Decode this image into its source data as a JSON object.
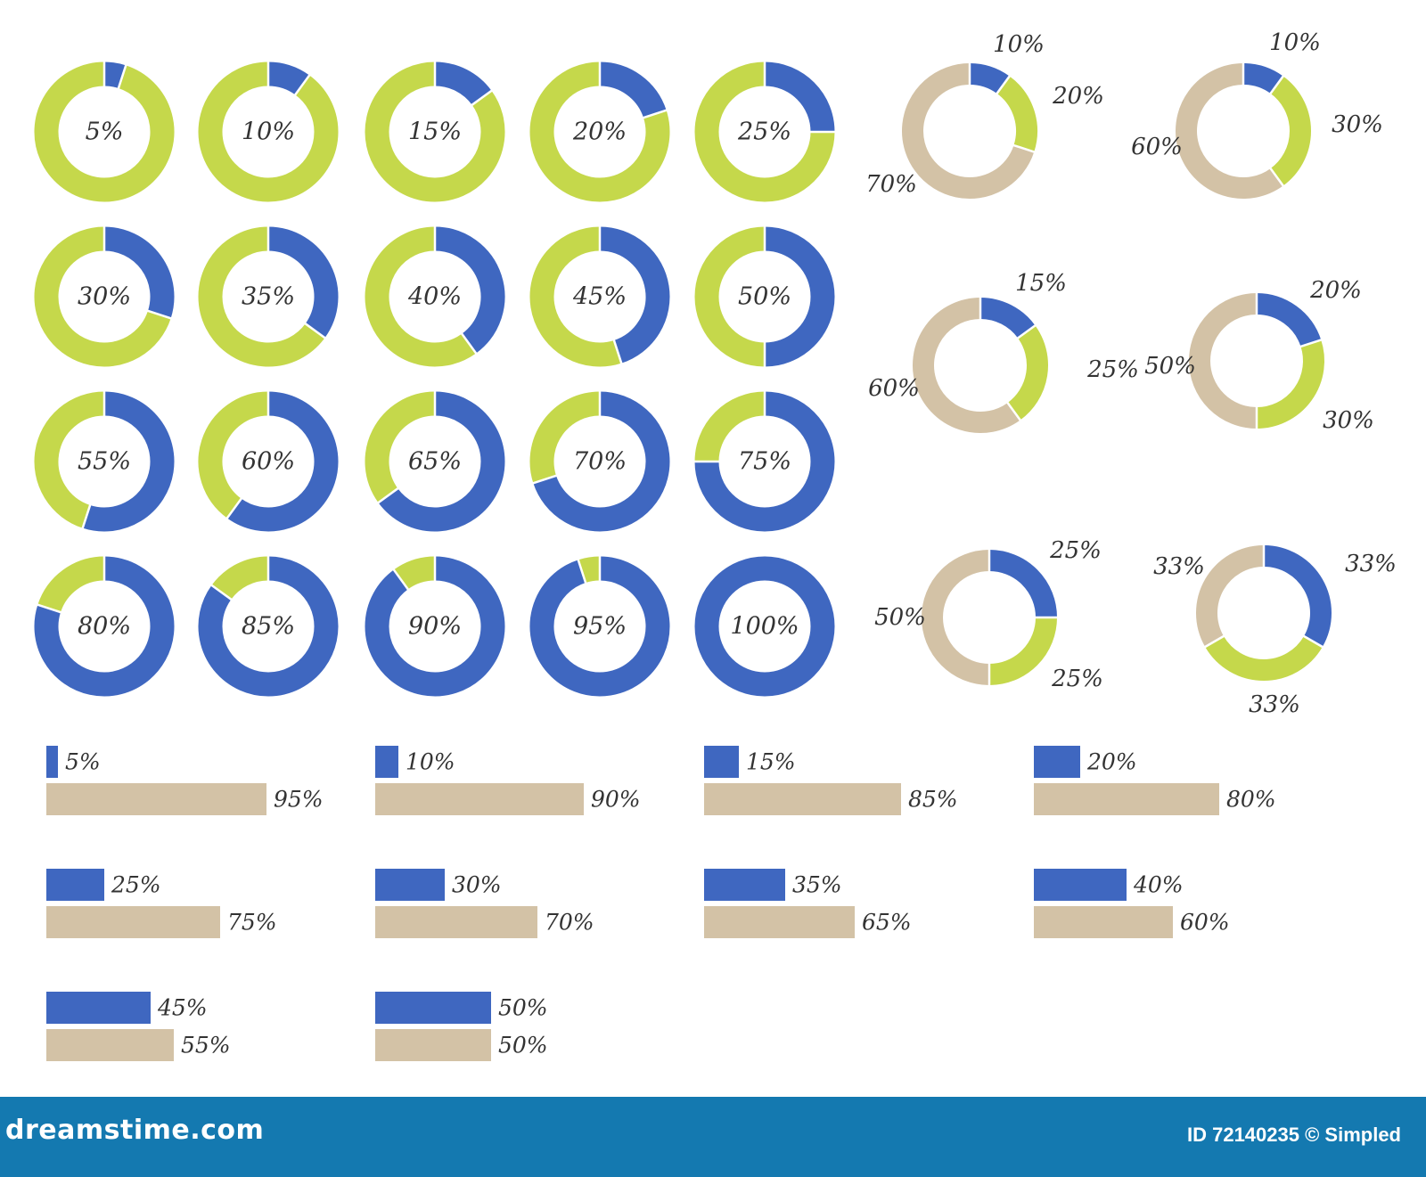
{
  "colors": {
    "blue": "#3f67c0",
    "green": "#c5d84b",
    "tan": "#d3c2a6",
    "text": "#333333",
    "footer": "#1479b0",
    "footer_text": "#ffffff"
  },
  "chart_data": [
    {
      "type": "pie",
      "variant": "donut-grid",
      "series": [
        {
          "values": [
            5,
            10,
            15,
            20,
            25,
            30,
            35,
            40,
            45,
            50,
            55,
            60,
            65,
            70,
            75,
            80,
            85,
            90,
            95,
            100
          ]
        }
      ],
      "labels": [
        "5%",
        "10%",
        "15%",
        "20%",
        "25%",
        "30%",
        "35%",
        "40%",
        "45%",
        "50%",
        "55%",
        "60%",
        "65%",
        "70%",
        "75%",
        "80%",
        "85%",
        "90%",
        "95%",
        "100%"
      ],
      "colors": [
        "blue",
        "green"
      ]
    },
    {
      "type": "pie",
      "variant": "three-part-donuts",
      "donuts": [
        {
          "values": [
            10,
            20,
            70
          ],
          "labels": [
            "10%",
            "20%",
            "70%"
          ]
        },
        {
          "values": [
            10,
            30,
            60
          ],
          "labels": [
            "10%",
            "30%",
            "60%"
          ]
        },
        {
          "values": [
            15,
            25,
            60
          ],
          "labels": [
            "15%",
            "25%",
            "60%"
          ]
        },
        {
          "values": [
            20,
            30,
            50
          ],
          "labels": [
            "20%",
            "30%",
            "50%"
          ]
        },
        {
          "values": [
            25,
            25,
            50
          ],
          "labels": [
            "25%",
            "25%",
            "50%"
          ]
        },
        {
          "values": [
            33,
            33,
            33
          ],
          "labels": [
            "33%",
            "33%",
            "33%"
          ]
        }
      ],
      "colors": [
        "blue",
        "green",
        "tan"
      ]
    },
    {
      "type": "bar",
      "orientation": "horizontal",
      "pairs": [
        {
          "top": 5,
          "bottom": 95,
          "top_label": "5%",
          "bottom_label": "95%"
        },
        {
          "top": 10,
          "bottom": 90,
          "top_label": "10%",
          "bottom_label": "90%"
        },
        {
          "top": 15,
          "bottom": 85,
          "top_label": "15%",
          "bottom_label": "85%"
        },
        {
          "top": 20,
          "bottom": 80,
          "top_label": "20%",
          "bottom_label": "80%"
        },
        {
          "top": 25,
          "bottom": 75,
          "top_label": "25%",
          "bottom_label": "75%"
        },
        {
          "top": 30,
          "bottom": 70,
          "top_label": "30%",
          "bottom_label": "70%"
        },
        {
          "top": 35,
          "bottom": 65,
          "top_label": "35%",
          "bottom_label": "65%"
        },
        {
          "top": 40,
          "bottom": 60,
          "top_label": "40%",
          "bottom_label": "60%"
        },
        {
          "top": 45,
          "bottom": 55,
          "top_label": "45%",
          "bottom_label": "55%"
        },
        {
          "top": 50,
          "bottom": 50,
          "top_label": "50%",
          "bottom_label": "50%"
        }
      ],
      "colors": [
        "blue",
        "tan"
      ]
    }
  ],
  "footer": {
    "brand": "dreamstime.com",
    "credit": "ID 72140235 © Simpled"
  }
}
